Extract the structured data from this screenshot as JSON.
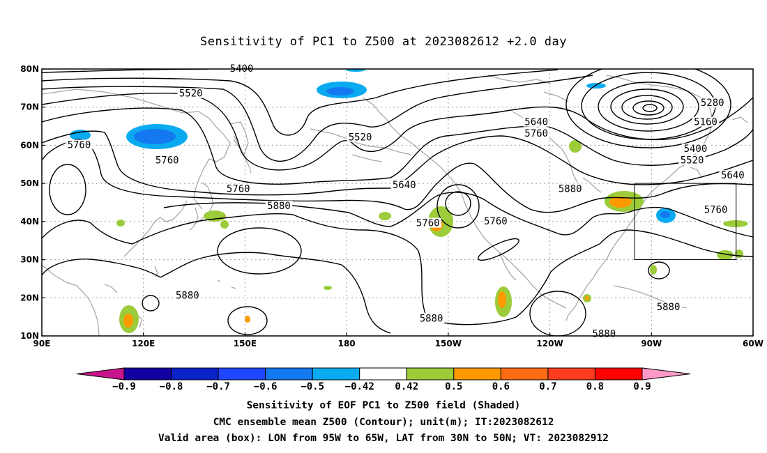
{
  "title": "Sensitivity of PC1 to Z500 at 2023082612 +2.0 day",
  "map": {
    "lon_range": [
      90,
      300
    ],
    "lat_range": [
      10,
      80
    ],
    "x_ticks": [
      {
        "lon": 90,
        "label": "90E"
      },
      {
        "lon": 120,
        "label": "120E"
      },
      {
        "lon": 150,
        "label": "150E"
      },
      {
        "lon": 180,
        "label": "180"
      },
      {
        "lon": 210,
        "label": "150W"
      },
      {
        "lon": 240,
        "label": "120W"
      },
      {
        "lon": 270,
        "label": "90W"
      },
      {
        "lon": 300,
        "label": "60W"
      }
    ],
    "y_ticks": [
      {
        "lat": 80,
        "label": "80N"
      },
      {
        "lat": 70,
        "label": "70N"
      },
      {
        "lat": 60,
        "label": "60N"
      },
      {
        "lat": 50,
        "label": "50N"
      },
      {
        "lat": 40,
        "label": "40N"
      },
      {
        "lat": 30,
        "label": "30N"
      },
      {
        "lat": 20,
        "label": "20N"
      },
      {
        "lat": 10,
        "label": "10N"
      }
    ],
    "grid": true,
    "valid_box": {
      "lon": [
        265,
        295
      ],
      "lat": [
        30,
        50
      ]
    },
    "contour_labels": [
      {
        "text": "5400",
        "lon": 149,
        "lat": 80
      },
      {
        "text": "5520",
        "lon": 134,
        "lat": 73.5
      },
      {
        "text": "5520",
        "lon": 184,
        "lat": 62
      },
      {
        "text": "5760",
        "lon": 101,
        "lat": 60
      },
      {
        "text": "5760",
        "lon": 127,
        "lat": 56
      },
      {
        "text": "5760",
        "lon": 148,
        "lat": 48.5
      },
      {
        "text": "5880",
        "lon": 160,
        "lat": 44
      },
      {
        "text": "5640",
        "lon": 197,
        "lat": 49.5
      },
      {
        "text": "5760",
        "lon": 204,
        "lat": 39.5
      },
      {
        "text": "5760",
        "lon": 224,
        "lat": 40
      },
      {
        "text": "5640",
        "lon": 236,
        "lat": 66
      },
      {
        "text": "5760",
        "lon": 236,
        "lat": 63
      },
      {
        "text": "5880",
        "lon": 246,
        "lat": 48.5
      },
      {
        "text": "5880",
        "lon": 133,
        "lat": 20.5
      },
      {
        "text": "5880",
        "lon": 205,
        "lat": 14.5
      },
      {
        "text": "5880",
        "lon": 256,
        "lat": 10.5
      },
      {
        "text": "5880",
        "lon": 275,
        "lat": 17.5
      },
      {
        "text": "5280",
        "lon": 288,
        "lat": 71
      },
      {
        "text": "5160",
        "lon": 286,
        "lat": 66
      },
      {
        "text": "5400",
        "lon": 283,
        "lat": 59
      },
      {
        "text": "5520",
        "lon": 282,
        "lat": 56
      },
      {
        "text": "5640",
        "lon": 294,
        "lat": 52
      },
      {
        "text": "5760",
        "lon": 289,
        "lat": 43
      }
    ]
  },
  "colorbar": {
    "labels": [
      "−0.9",
      "−0.8",
      "−0.7",
      "−0.6",
      "−0.5",
      "−0.42",
      "0.42",
      "0.5",
      "0.6",
      "0.7",
      "0.8",
      "0.9"
    ],
    "colors": [
      "#1400a0",
      "#0a22c8",
      "#1e46ff",
      "#1478f0",
      "#0aaaf0",
      "#ffffff",
      "#9ccc3a",
      "#ff9a00",
      "#ff6a14",
      "#ff3c1e",
      "#ff0000"
    ],
    "low_color": "#c8148c",
    "high_color": "#ff9ac8"
  },
  "caption": {
    "line1": "Sensitivity of EOF PC1 to Z500 field (Shaded)",
    "line2": "CMC ensemble mean Z500 (Contour); unit(m); IT:2023082612",
    "line3": "Valid area (box): LON from 95W to 65W, LAT from 30N to 50N; VT: 2023082912"
  }
}
